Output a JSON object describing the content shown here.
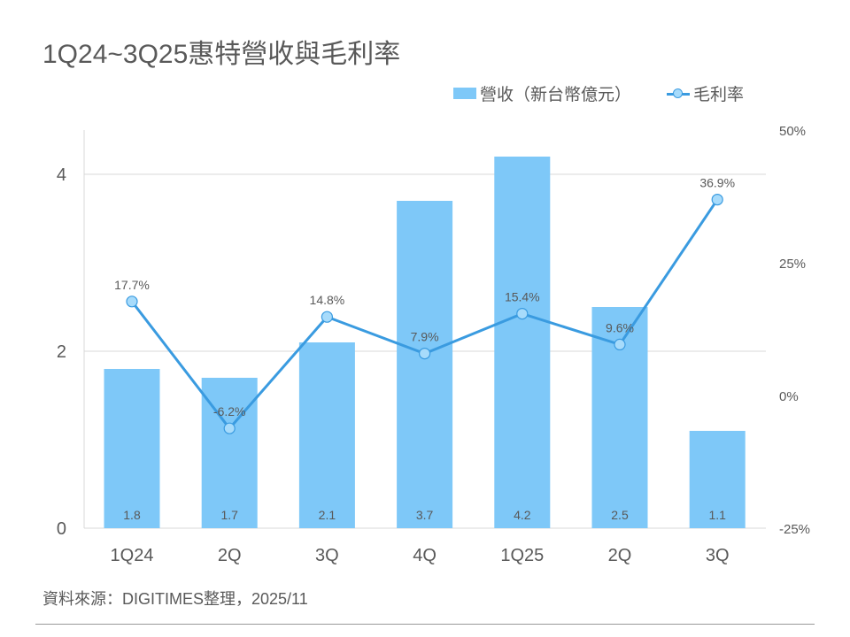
{
  "title": "1Q24~3Q25惠特營收與毛利率",
  "source": "資料來源：DIGITIMES整理，2025/11",
  "chart_data": {
    "type": "bar+line",
    "title": "1Q24~3Q25惠特營收與毛利率",
    "categories": [
      "1Q24",
      "2Q",
      "3Q",
      "4Q",
      "1Q25",
      "2Q",
      "3Q"
    ],
    "series": [
      {
        "name": "營收（新台幣億元）",
        "type": "bar",
        "axis": "left",
        "values": [
          1.8,
          1.7,
          2.1,
          3.7,
          4.2,
          2.5,
          1.1
        ],
        "labels": [
          "1.8",
          "1.7",
          "2.1",
          "3.7",
          "4.2",
          "2.5",
          "1.1"
        ],
        "color": "#7ec8f8"
      },
      {
        "name": "毛利率",
        "type": "line",
        "axis": "right",
        "values": [
          17.7,
          -6.2,
          14.8,
          7.9,
          15.4,
          9.6,
          36.9
        ],
        "labels": [
          "17.7%",
          "-6.2%",
          "14.8%",
          "7.9%",
          "15.4%",
          "9.6%",
          "36.9%"
        ],
        "color": "#3a9be0"
      }
    ],
    "y_left": {
      "range": [
        0,
        4.5
      ],
      "ticks": [
        "0",
        "2",
        "4"
      ],
      "tick_values": [
        0,
        2,
        4
      ]
    },
    "y_right": {
      "range": [
        -25,
        50
      ],
      "ticks": [
        "-25%",
        "0%",
        "25%",
        "50%"
      ],
      "tick_values": [
        -25,
        0,
        25,
        50
      ]
    },
    "grid": true,
    "legend": "top-right"
  }
}
